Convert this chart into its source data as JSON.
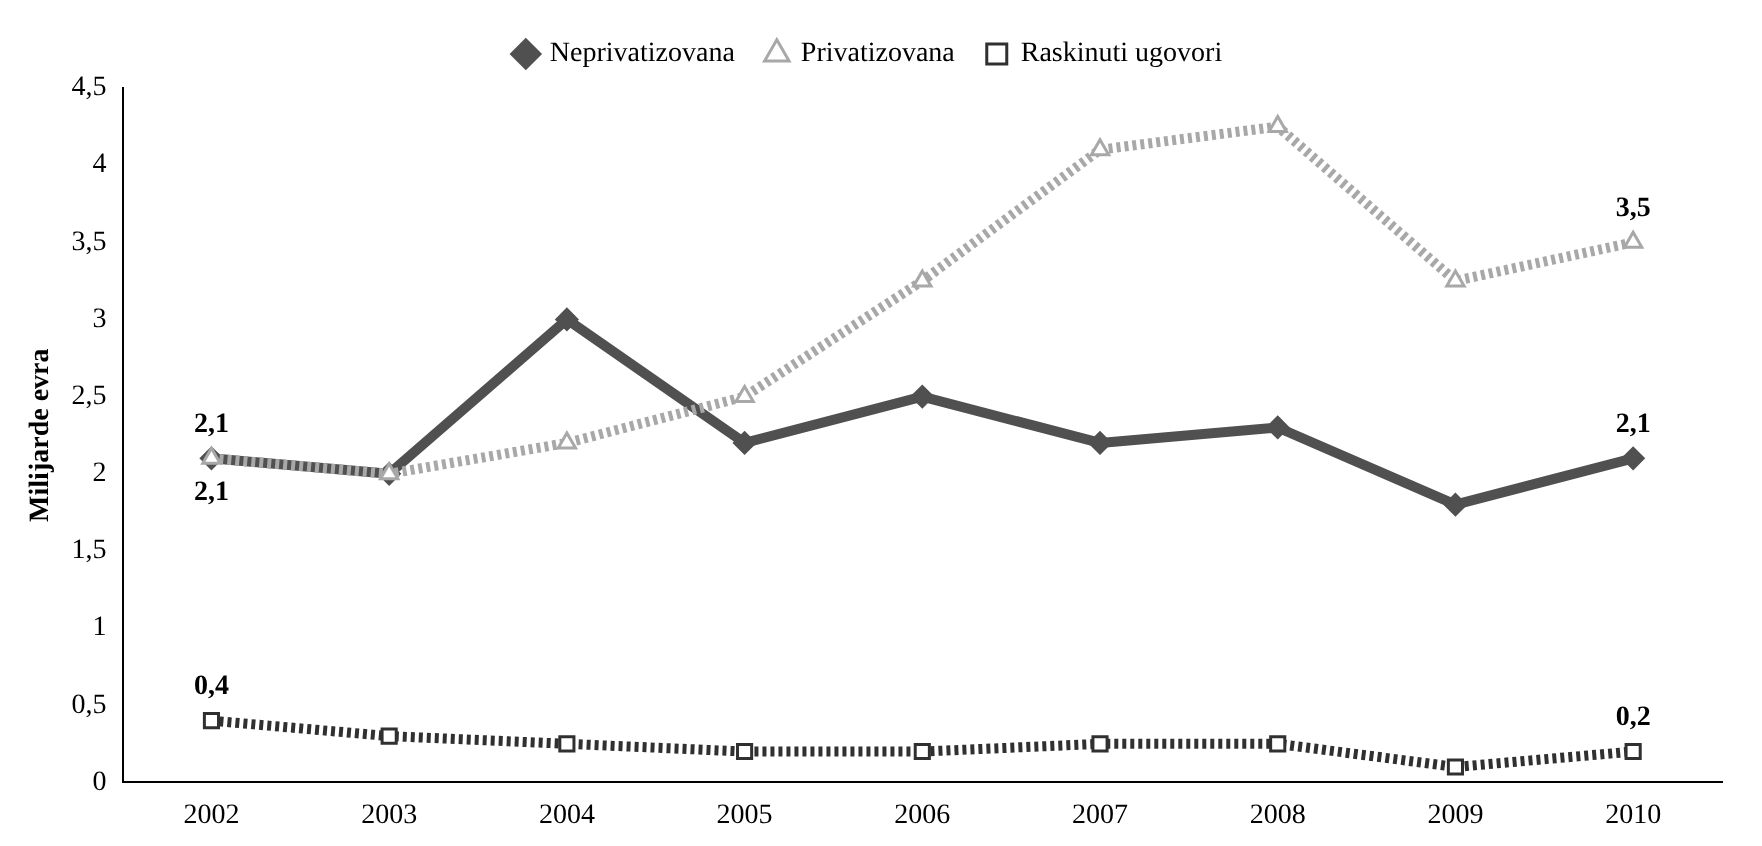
{
  "chart_data": {
    "type": "line",
    "ylabel": "Milijarde evra",
    "categories": [
      "2002",
      "2003",
      "2004",
      "2005",
      "2006",
      "2007",
      "2008",
      "2009",
      "2010"
    ],
    "ylim": [
      0,
      4.5
    ],
    "yticks": [
      0,
      {
        "value": 0.5,
        "label": "0,5"
      },
      1,
      {
        "value": 1.5,
        "label": "1,5"
      },
      2,
      {
        "value": 2.5,
        "label": "2,5"
      },
      3,
      {
        "value": 3.5,
        "label": "3,5"
      },
      4,
      {
        "value": 4.5,
        "label": "4,5"
      }
    ],
    "grid": false,
    "legend": "top",
    "series": [
      {
        "name": "Neprivatizovana",
        "color": "#505050",
        "marker": "diamond",
        "line_style": "solid",
        "values": [
          2.1,
          2.0,
          3.0,
          2.2,
          2.5,
          2.2,
          2.3,
          1.8,
          2.1
        ],
        "value_labels": [
          "2,1",
          null,
          null,
          null,
          null,
          null,
          null,
          null,
          "2,1"
        ]
      },
      {
        "name": "Privatizovana",
        "color": "#a8a8a8",
        "marker": "triangle",
        "line_style": "dotted",
        "values": [
          2.1,
          2.0,
          2.2,
          2.5,
          3.25,
          4.1,
          4.25,
          3.25,
          3.5
        ],
        "value_labels": [
          "2,1",
          null,
          null,
          null,
          null,
          null,
          null,
          null,
          "3,5"
        ]
      },
      {
        "name": "Raskinuti ugovori",
        "color": "#303030",
        "marker": "square",
        "line_style": "dotted",
        "values": [
          0.4,
          0.3,
          0.25,
          0.2,
          0.2,
          0.25,
          0.25,
          0.1,
          0.2
        ],
        "value_labels": [
          "0,4",
          null,
          null,
          null,
          null,
          null,
          null,
          null,
          "0,2"
        ]
      }
    ]
  }
}
